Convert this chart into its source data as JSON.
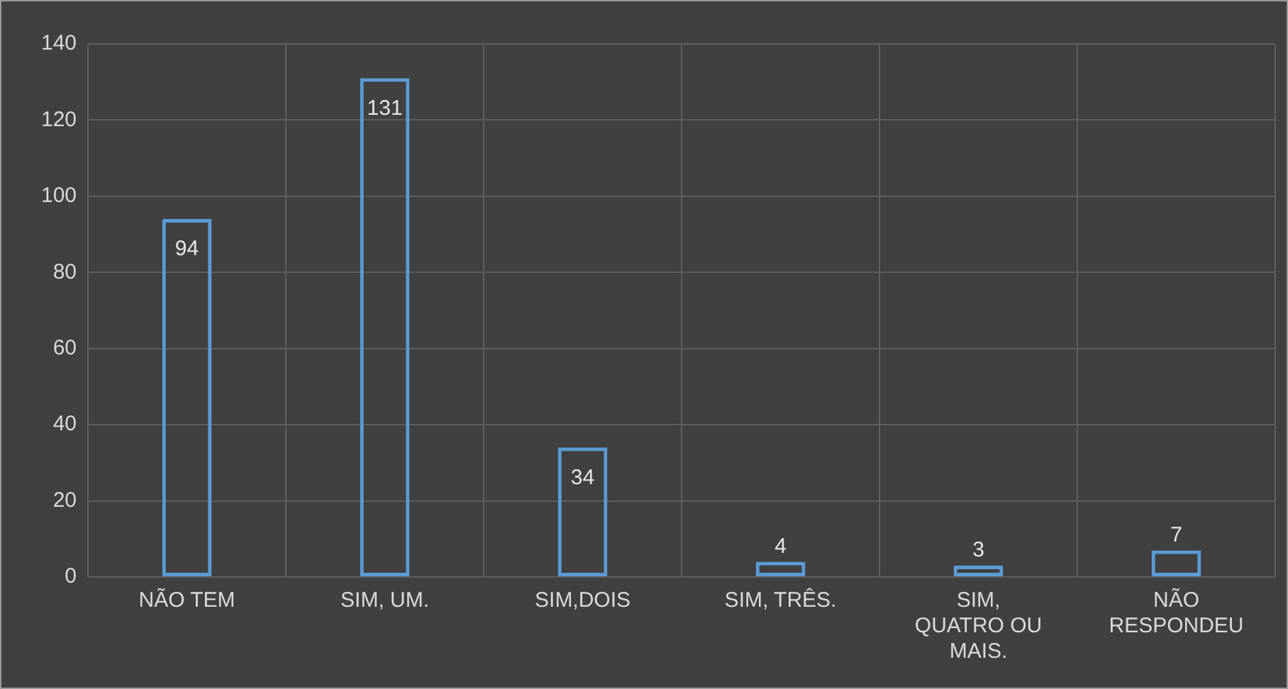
{
  "chart_data": {
    "type": "bar",
    "categories": [
      "NÃO TEM",
      "SIM, UM.",
      "SIM,DOIS",
      "SIM, TRÊS.",
      "SIM, QUATRO OU MAIS.",
      "NÃO RESPONDEU"
    ],
    "values": [
      94,
      131,
      34,
      4,
      3,
      7
    ],
    "color": "#5b9bd5",
    "ylim": [
      0,
      140
    ],
    "yticks": [
      0,
      20,
      40,
      60,
      80,
      100,
      120,
      140
    ],
    "grid": true,
    "data_labels": true
  }
}
